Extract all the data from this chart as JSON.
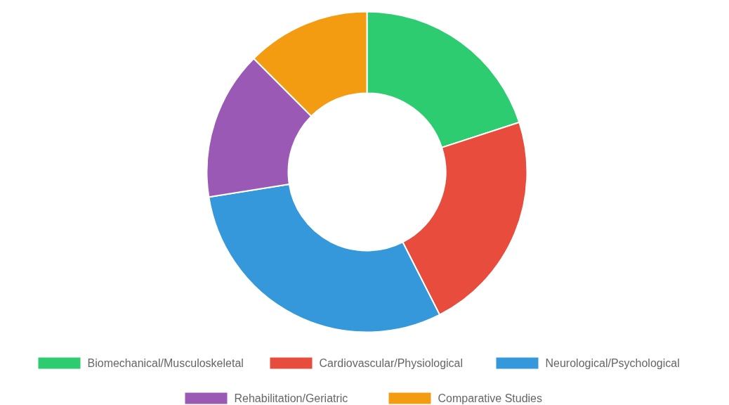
{
  "chart_data": {
    "type": "donut",
    "categories": [
      "Biomechanical/Musculoskeletal",
      "Cardiovascular/Physiological",
      "Neurological/Psychological",
      "Rehabilitation/Geriatric",
      "Comparative Studies"
    ],
    "values": [
      20,
      22.5,
      30,
      15,
      12.5
    ],
    "colors": [
      "#2ecc71",
      "#e74c3c",
      "#3498db",
      "#9b59b6",
      "#f39c12"
    ],
    "legend": "bottom"
  }
}
